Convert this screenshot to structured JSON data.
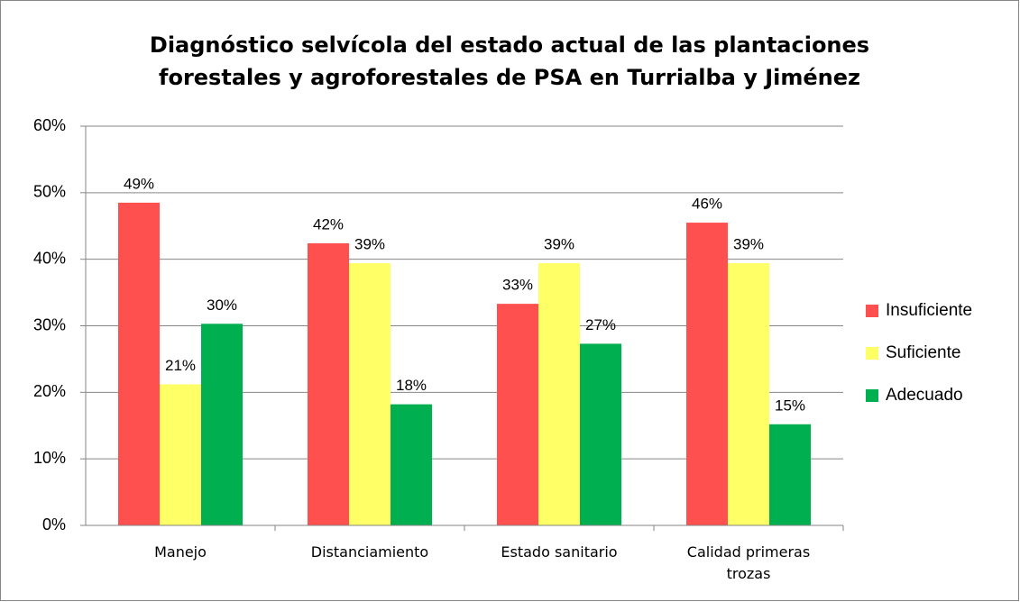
{
  "chart_data": {
    "type": "bar",
    "title": "Diagnóstico selvícola del estado actual de las plantaciones\nforestales y agroforestales de PSA en Turrialba y Jiménez",
    "categories": [
      "Manejo",
      "Distanciamiento",
      "Estado sanitario",
      "Calidad primeras trozas"
    ],
    "series": [
      {
        "name": "Insuficiente",
        "color": "#ff5050",
        "values": [
          48.5,
          42.4,
          33.3,
          45.5
        ],
        "value_labels": [
          "49%",
          "42%",
          "33%",
          "46%"
        ]
      },
      {
        "name": "Suficiente",
        "color": "#ffff66",
        "values": [
          21.2,
          39.4,
          39.4,
          39.4
        ],
        "value_labels": [
          "21%",
          "39%",
          "39%",
          "39%"
        ]
      },
      {
        "name": "Adecuado",
        "color": "#00b050",
        "values": [
          30.3,
          18.2,
          27.3,
          15.2
        ],
        "value_labels": [
          "30%",
          "18%",
          "27%",
          "15%"
        ]
      }
    ],
    "ylim": [
      0,
      60
    ],
    "yticks": [
      {
        "value": 0,
        "label": "0%"
      },
      {
        "value": 10,
        "label": "10%"
      },
      {
        "value": 20,
        "label": "20%"
      },
      {
        "value": 30,
        "label": "30%"
      },
      {
        "value": 40,
        "label": "40%"
      },
      {
        "value": 50,
        "label": "50%"
      },
      {
        "value": 60,
        "label": "60%"
      }
    ],
    "grid": true,
    "legend": "right"
  }
}
